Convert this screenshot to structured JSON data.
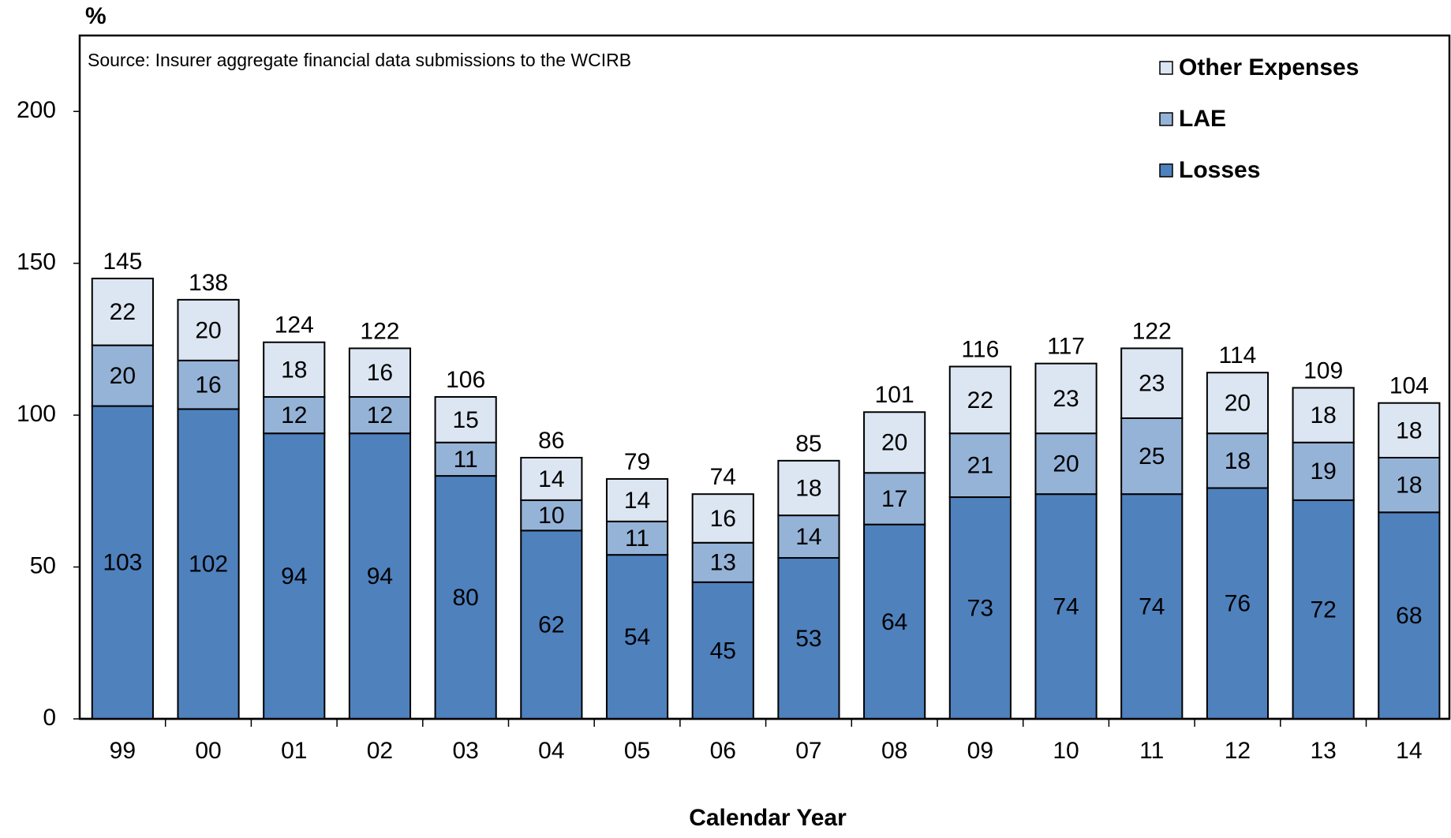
{
  "chart_data": {
    "type": "stacked_bar",
    "y_label": "%",
    "x_label": "Calendar Year",
    "annotation": "Source: Insurer aggregate financial data submissions to the WCIRB",
    "categories": [
      "99",
      "00",
      "01",
      "02",
      "03",
      "04",
      "05",
      "06",
      "07",
      "08",
      "09",
      "10",
      "11",
      "12",
      "13",
      "14"
    ],
    "series": [
      {
        "name": "Losses",
        "color": "#4f81bd",
        "values": [
          103,
          102,
          94,
          94,
          80,
          62,
          54,
          45,
          53,
          64,
          73,
          74,
          74,
          76,
          72,
          68
        ]
      },
      {
        "name": "LAE",
        "color": "#95b3d7",
        "values": [
          20,
          16,
          12,
          12,
          11,
          10,
          11,
          13,
          14,
          17,
          21,
          20,
          25,
          18,
          19,
          18
        ]
      },
      {
        "name": "Other Expenses",
        "color": "#dce6f2",
        "values": [
          22,
          20,
          18,
          16,
          15,
          14,
          14,
          16,
          18,
          20,
          22,
          23,
          23,
          20,
          18,
          18
        ]
      }
    ],
    "totals": [
      145,
      138,
      124,
      122,
      106,
      86,
      79,
      74,
      85,
      101,
      116,
      117,
      122,
      114,
      109,
      104
    ],
    "ylim": [
      0,
      225
    ],
    "yticks": [
      0,
      50,
      100,
      150,
      200
    ],
    "legend": "top-right"
  }
}
